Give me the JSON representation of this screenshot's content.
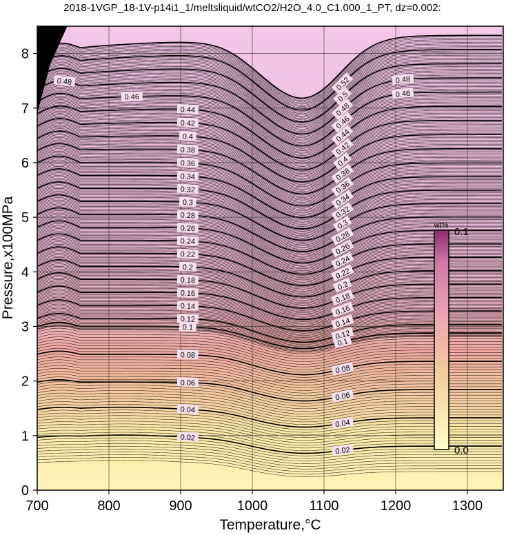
{
  "chart_data": {
    "type": "contour",
    "title": "2018-1VGP_18-1V-p14i1_1/meltsliquid/wtCO2/H2O_4.0_C1.000_1_PT, dz=0.002:",
    "xlabel": "Temperature,°C",
    "ylabel": "Pressure,x100MPa",
    "xlim": [
      700,
      1350
    ],
    "ylim": [
      0,
      8.5
    ],
    "x_ticks": [
      700,
      800,
      900,
      1000,
      1100,
      1200,
      1300
    ],
    "y_ticks": [
      0,
      1,
      2,
      3,
      4,
      5,
      6,
      7,
      8
    ],
    "grid": true,
    "contour_interval": 0.002,
    "labeled_contours": [
      0.02,
      0.04,
      0.06,
      0.08,
      0.1,
      0.12,
      0.14,
      0.16,
      0.18,
      0.2,
      0.22,
      0.24,
      0.26,
      0.28,
      0.3,
      0.32,
      0.34,
      0.36,
      0.38,
      0.4,
      0.42,
      0.44,
      0.46,
      0.48,
      0.5,
      0.52
    ],
    "label_series_left": [
      {
        "t": 910,
        "values": [
          "0.02",
          "0.04",
          "0.06",
          "0.08",
          "0.1",
          "0.12",
          "0.14",
          "0.16",
          "0.18",
          "0.2",
          "0.22",
          "0.24",
          "0.26",
          "0.28",
          "0.3",
          "0.32",
          "0.34",
          "0.36",
          "0.38",
          "0.4",
          "0.42",
          "0.44"
        ]
      },
      {
        "t": 832,
        "values": [
          "0.46"
        ]
      },
      {
        "t": 738,
        "values": [
          "0.48"
        ]
      }
    ],
    "label_series_right": [
      {
        "t": 1126,
        "values": [
          "0.02",
          "0.04",
          "0.06",
          "0.08",
          "0.1",
          "0.12",
          "0.14",
          "0.16",
          "0.18",
          "0.2",
          "0.22",
          "0.24",
          "0.26",
          "0.28",
          "0.3",
          "0.32",
          "0.34",
          "0.36",
          "0.38",
          "0.4",
          "0.42",
          "0.44",
          "0.46",
          "0.48",
          "0.5",
          "0.52"
        ]
      },
      {
        "t": 1210,
        "values": [
          "0.48",
          "0.46"
        ]
      }
    ],
    "colorbar": {
      "unit": "wt%",
      "min_label": "0.0",
      "max_label": "0.1",
      "colors": [
        "#ffffc8",
        "#f2c098",
        "#e8a0b4",
        "#b0487c"
      ]
    }
  }
}
